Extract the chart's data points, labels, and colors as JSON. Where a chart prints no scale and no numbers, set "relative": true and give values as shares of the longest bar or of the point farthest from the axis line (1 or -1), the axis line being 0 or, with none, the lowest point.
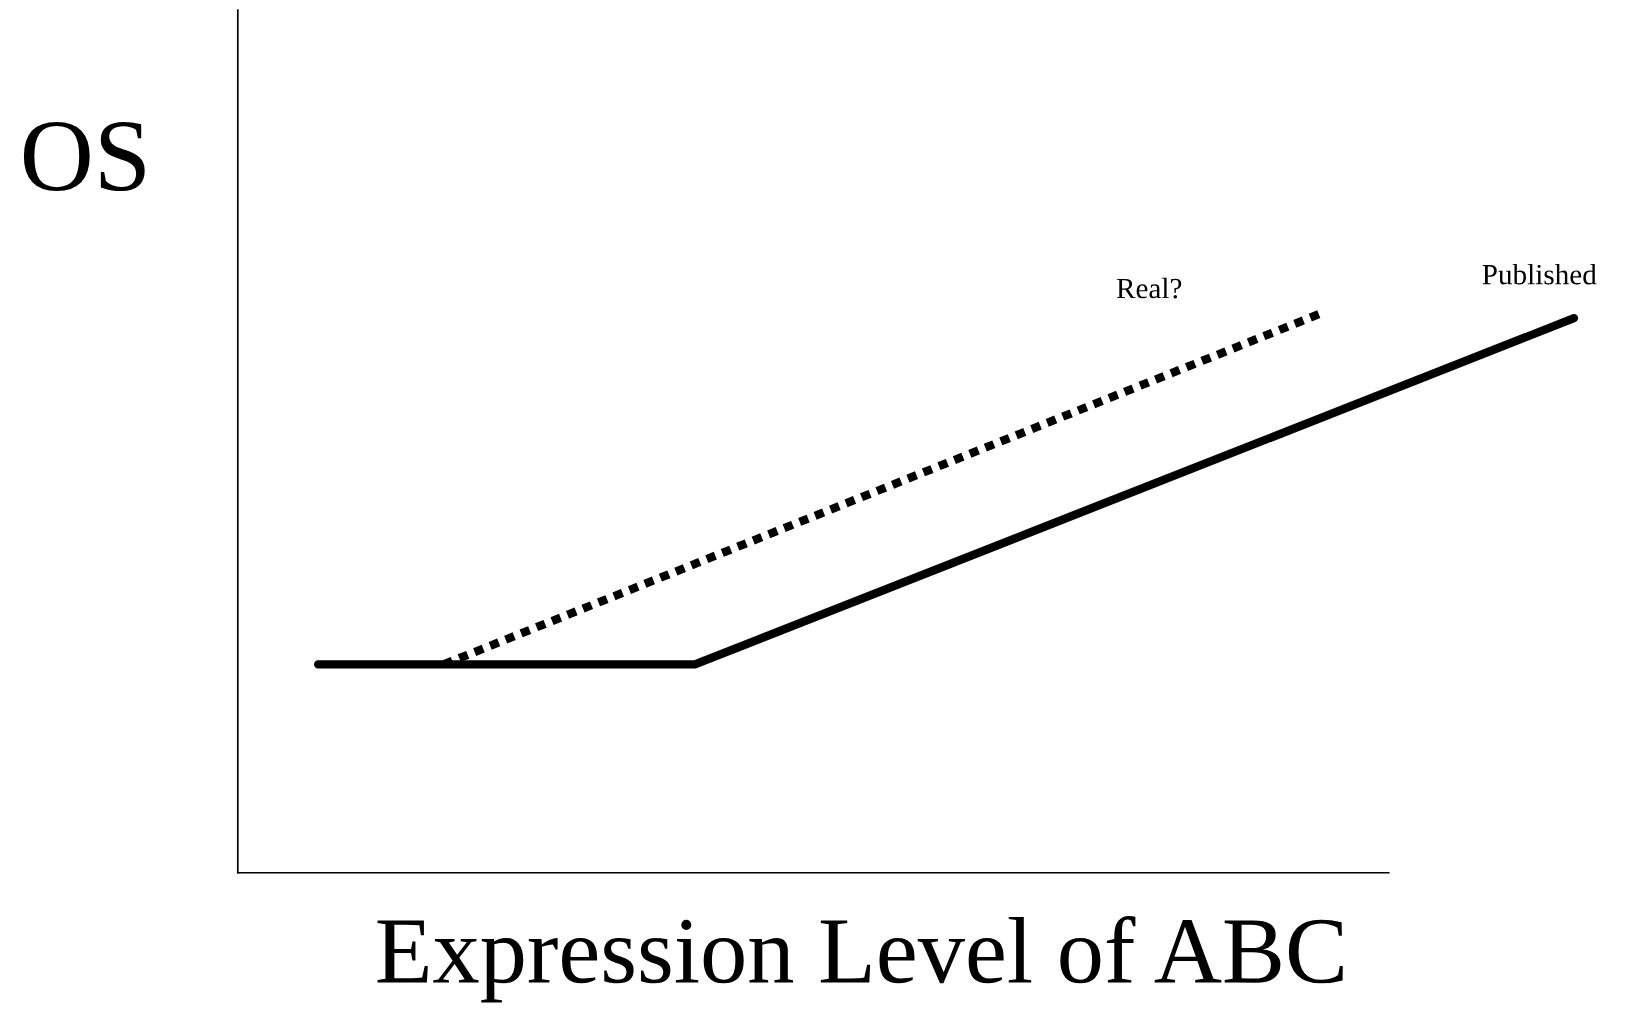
{
  "chart_data": {
    "type": "line",
    "xlabel": "Expression Level of ABC",
    "ylabel": "OS",
    "relative": true,
    "categories": [
      null,
      null,
      null,
      null,
      null,
      null,
      null,
      null,
      null,
      null,
      null,
      null,
      null,
      null,
      null,
      null,
      null,
      null,
      null,
      null,
      null
    ],
    "series": [
      {
        "name": "Published",
        "color": "#000000",
        "line_style": "solid",
        "values": [
          0.372,
          null,
          null,
          null,
          null,
          null,
          0.372,
          null,
          null,
          null,
          null,
          null,
          null,
          null,
          null,
          null,
          null,
          null,
          null,
          null,
          0.99
        ]
      },
      {
        "name": "Real?",
        "color": "#000000",
        "line_style": "dotted",
        "values": [
          null,
          null,
          0.372,
          null,
          null,
          null,
          null,
          null,
          null,
          null,
          null,
          null,
          null,
          null,
          null,
          null,
          1.0,
          null,
          null,
          null,
          null
        ]
      }
    ],
    "grid": false,
    "legend": false,
    "marker": "none"
  }
}
